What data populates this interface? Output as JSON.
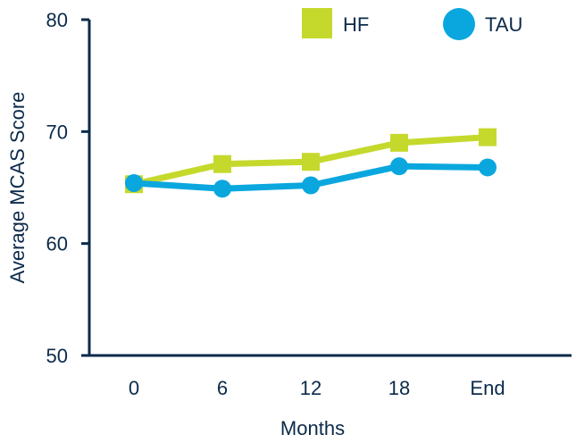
{
  "chart_data": {
    "type": "line",
    "categories": [
      "0",
      "6",
      "12",
      "18",
      "End"
    ],
    "xlabel": "Months",
    "ylabel": "Average MCAS Score",
    "ylim": [
      50,
      80
    ],
    "yticks": [
      "50",
      "60",
      "70",
      "80"
    ],
    "grid": false,
    "legend": "top-right",
    "series": [
      {
        "name": "HF",
        "values": [
          65.3,
          67.1,
          67.3,
          69.0,
          69.5
        ],
        "color": "#c5d92d",
        "marker": "square"
      },
      {
        "name": "TAU",
        "values": [
          65.4,
          64.9,
          65.2,
          66.9,
          66.8
        ],
        "color": "#0aa7de",
        "marker": "circle"
      }
    ]
  }
}
